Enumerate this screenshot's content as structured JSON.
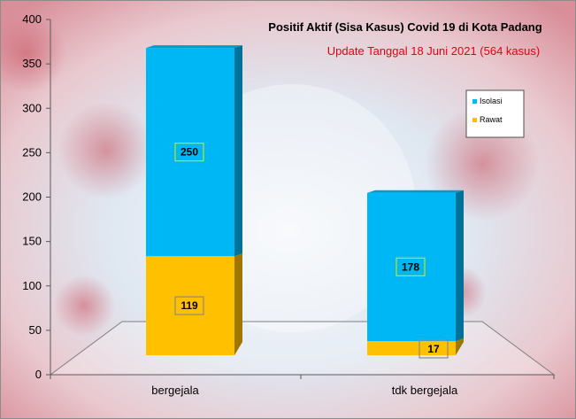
{
  "chart_data": {
    "type": "bar",
    "stacked": true,
    "title": "Positif Aktif  (Sisa Kasus) Covid 19 di Kota Padang",
    "subtitle": "Update Tanggal 18 Juni 2021  (564 kasus)",
    "categories": [
      "bergejala",
      "tdk bergejala"
    ],
    "series": [
      {
        "name": "Rawat",
        "values": [
          119,
          17
        ],
        "color": "#ffc000"
      },
      {
        "name": "Isolasi",
        "values": [
          250,
          178
        ],
        "color": "#00b7f5"
      }
    ],
    "ylim": [
      0,
      400
    ],
    "yticks": [
      0,
      50,
      100,
      150,
      200,
      250,
      300,
      350,
      400
    ],
    "legend": {
      "position": "right",
      "order": [
        "Isolasi",
        "Rawat"
      ]
    },
    "xlabel": "",
    "ylabel": ""
  }
}
